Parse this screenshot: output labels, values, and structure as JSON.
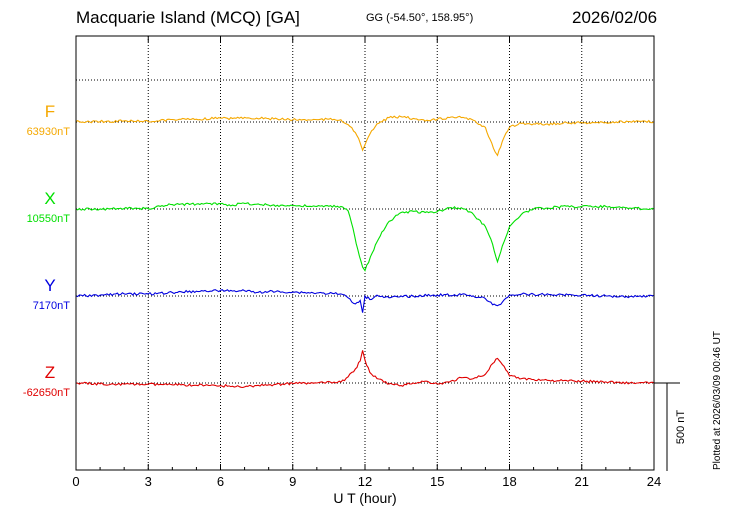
{
  "header": {
    "station": "Macquarie Island (MCQ)  [GA]",
    "coordinates": "GG (-54.50°, 158.95°)",
    "date": "2026/02/06"
  },
  "footer": {
    "plotted": "Plotted at 2026/03/09 00:46 UT"
  },
  "chart_data": {
    "type": "line",
    "xlabel": "U T (hour)",
    "xlim": [
      0,
      24
    ],
    "xticks": [
      0,
      3,
      6,
      9,
      12,
      15,
      18,
      21,
      24
    ],
    "xtick_labels": [
      "0",
      "3",
      "6",
      "9",
      "12",
      "15",
      "18",
      "21",
      "24"
    ],
    "grid": true,
    "scale_bar": {
      "label": "500 nT",
      "value": 500
    },
    "series": [
      {
        "name": "F",
        "baseline_label": "63930nT",
        "baseline": 63930,
        "color": "#f5a800",
        "x": [
          0,
          1,
          2,
          3,
          3.5,
          4,
          5,
          6,
          6.5,
          7,
          7.5,
          8,
          9,
          10,
          10.5,
          11,
          11.3,
          11.6,
          11.8,
          11.9,
          12.0,
          12.2,
          12.5,
          13,
          13.5,
          14,
          14.5,
          15,
          15.5,
          16,
          16.5,
          17,
          17.2,
          17.4,
          17.5,
          17.7,
          18,
          18.5,
          19,
          19.5,
          20,
          21,
          22,
          23,
          24
        ],
        "y": [
          63932,
          63932,
          63937,
          63933,
          63940,
          63944,
          63946,
          63952,
          63950,
          63956,
          63952,
          63949,
          63943,
          63943,
          63946,
          63943,
          63915,
          63870,
          63810,
          63770,
          63800,
          63860,
          63920,
          63955,
          63960,
          63950,
          63935,
          63945,
          63955,
          63955,
          63940,
          63900,
          63830,
          63760,
          63740,
          63820,
          63900,
          63922,
          63920,
          63917,
          63922,
          63927,
          63927,
          63932,
          63932
        ]
      },
      {
        "name": "X",
        "baseline_label": "10550nT",
        "baseline": 10550,
        "color": "#00e000",
        "x": [
          0,
          1,
          2,
          3,
          3.5,
          4,
          5,
          6,
          6.5,
          7,
          7.5,
          8,
          9,
          10,
          11,
          11.3,
          11.5,
          11.7,
          11.9,
          12.0,
          12.3,
          12.7,
          13,
          13.5,
          14,
          14.5,
          15,
          15.5,
          16,
          16.5,
          17,
          17.3,
          17.5,
          17.7,
          18,
          18.5,
          19,
          20,
          21,
          22,
          23,
          24
        ],
        "y": [
          10550,
          10550,
          10553,
          10552,
          10565,
          10575,
          10578,
          10580,
          10572,
          10582,
          10577,
          10572,
          10569,
          10565,
          10564,
          10540,
          10440,
          10320,
          10220,
          10200,
          10300,
          10420,
          10480,
          10530,
          10537,
          10530,
          10535,
          10557,
          10557,
          10520,
          10450,
          10350,
          10250,
          10340,
          10450,
          10520,
          10550,
          10562,
          10565,
          10565,
          10555,
          10550
        ]
      },
      {
        "name": "Y",
        "baseline_label": "7170nT",
        "baseline": 7170,
        "color": "#0000e0",
        "x": [
          0,
          1,
          2,
          3,
          4,
          5,
          6,
          6.5,
          7,
          7.5,
          8,
          9,
          10,
          11,
          11.3,
          11.6,
          11.8,
          11.9,
          12.0,
          12.2,
          12.5,
          13,
          14,
          15,
          16,
          16.5,
          17,
          17.3,
          17.5,
          17.7,
          18,
          18.5,
          19,
          20,
          21,
          22,
          23,
          24
        ],
        "y": [
          7170,
          7175,
          7182,
          7182,
          7190,
          7197,
          7202,
          7198,
          7200,
          7190,
          7195,
          7192,
          7187,
          7182,
          7160,
          7125,
          7145,
          7075,
          7170,
          7150,
          7175,
          7160,
          7170,
          7175,
          7178,
          7170,
          7155,
          7120,
          7115,
          7135,
          7175,
          7180,
          7180,
          7177,
          7175,
          7170,
          7167,
          7172
        ]
      },
      {
        "name": "Z",
        "baseline_label": "-62650nT",
        "baseline": -62650,
        "color": "#e00000",
        "x": [
          0,
          1,
          2,
          3,
          4,
          5,
          6,
          6.5,
          7,
          7.5,
          8,
          9,
          10,
          11,
          11.3,
          11.6,
          11.8,
          11.9,
          12.0,
          12.2,
          12.5,
          13,
          13.5,
          14,
          14.5,
          15,
          15.5,
          16,
          16.5,
          17,
          17.3,
          17.5,
          17.7,
          18,
          18.5,
          19,
          20,
          21,
          22,
          23,
          24
        ],
        "y": [
          -62650,
          -62655,
          -62657,
          -62657,
          -62660,
          -62663,
          -62665,
          -62668,
          -62672,
          -62665,
          -62660,
          -62653,
          -62650,
          -62645,
          -62615,
          -62570,
          -62525,
          -62465,
          -62520,
          -62590,
          -62625,
          -62655,
          -62665,
          -62650,
          -62640,
          -62655,
          -62645,
          -62620,
          -62625,
          -62600,
          -62540,
          -62510,
          -62545,
          -62610,
          -62625,
          -62630,
          -62637,
          -62640,
          -62643,
          -62650,
          -62650
        ]
      }
    ]
  }
}
